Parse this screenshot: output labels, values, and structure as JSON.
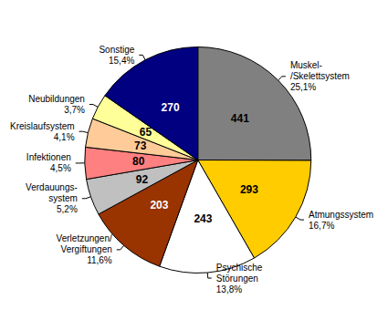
{
  "chart_data": {
    "type": "pie",
    "categories": [
      "Muskel-\n/Skelettsystem",
      "Atmungssystem",
      "Psychische\nStörungen",
      "Verletzungen/\nVergiftungen",
      "Verdauungs-\nsystem",
      "Infektionen",
      "Kreislaufsystem",
      "Neubildungen",
      "Sonstige"
    ],
    "values": [
      441,
      293,
      243,
      203,
      92,
      80,
      73,
      65,
      270
    ],
    "percentages": [
      25.1,
      16.7,
      13.8,
      11.6,
      5.2,
      4.5,
      4.1,
      3.7,
      15.4
    ],
    "percentage_labels": [
      "25,1%",
      "16,7%",
      "13,8%",
      "11,6%",
      "5,2%",
      "4,5%",
      "4,1%",
      "3,7%",
      "15,4%"
    ],
    "colors": [
      "#808080",
      "#ffcc00",
      "#ffffff",
      "#993300",
      "#c0c0c0",
      "#ff8080",
      "#ffcc99",
      "#ffff99",
      "#000080"
    ],
    "data_labels": true
  }
}
